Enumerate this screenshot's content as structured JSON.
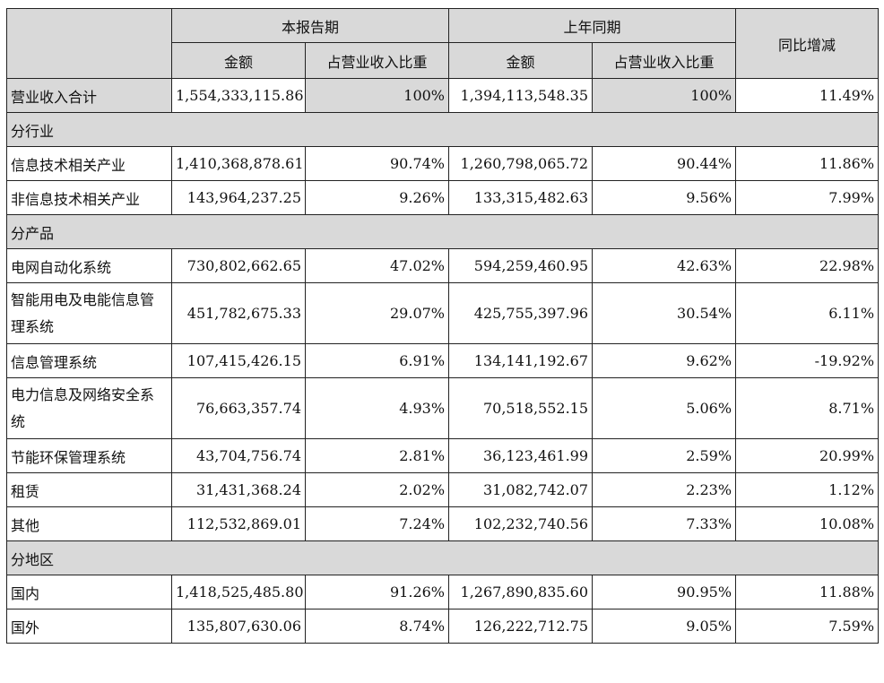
{
  "header": {
    "current_period": "本报告期",
    "prior_period": "上年同期",
    "yoy_change": "同比增减",
    "amount": "金额",
    "share_of_revenue": "占营业收入比重"
  },
  "total": {
    "label": "营业收入合计",
    "cur_amount": "1,554,333,115.86",
    "cur_pct": "100%",
    "prev_amount": "1,394,113,548.35",
    "prev_pct": "100%",
    "yoy": "11.49%"
  },
  "sections": [
    {
      "title": "分行业",
      "rows": [
        {
          "label": "信息技术相关产业",
          "cur_amount": "1,410,368,878.61",
          "cur_pct": "90.74%",
          "prev_amount": "1,260,798,065.72",
          "prev_pct": "90.44%",
          "yoy": "11.86%"
        },
        {
          "label": "非信息技术相关产业",
          "cur_amount": "143,964,237.25",
          "cur_pct": "9.26%",
          "prev_amount": "133,315,482.63",
          "prev_pct": "9.56%",
          "yoy": "7.99%"
        }
      ]
    },
    {
      "title": "分产品",
      "rows": [
        {
          "label": "电网自动化系统",
          "cur_amount": "730,802,662.65",
          "cur_pct": "47.02%",
          "prev_amount": "594,259,460.95",
          "prev_pct": "42.63%",
          "yoy": "22.98%"
        },
        {
          "label": "智能用电及电能信息管理系统",
          "cur_amount": "451,782,675.33",
          "cur_pct": "29.07%",
          "prev_amount": "425,755,397.96",
          "prev_pct": "30.54%",
          "yoy": "6.11%"
        },
        {
          "label": "信息管理系统",
          "cur_amount": "107,415,426.15",
          "cur_pct": "6.91%",
          "prev_amount": "134,141,192.67",
          "prev_pct": "9.62%",
          "yoy": "-19.92%"
        },
        {
          "label": "电力信息及网络安全系统",
          "cur_amount": "76,663,357.74",
          "cur_pct": "4.93%",
          "prev_amount": "70,518,552.15",
          "prev_pct": "5.06%",
          "yoy": "8.71%"
        },
        {
          "label": "节能环保管理系统",
          "cur_amount": "43,704,756.74",
          "cur_pct": "2.81%",
          "prev_amount": "36,123,461.99",
          "prev_pct": "2.59%",
          "yoy": "20.99%"
        },
        {
          "label": "租赁",
          "cur_amount": "31,431,368.24",
          "cur_pct": "2.02%",
          "prev_amount": "31,082,742.07",
          "prev_pct": "2.23%",
          "yoy": "1.12%"
        },
        {
          "label": "其他",
          "cur_amount": "112,532,869.01",
          "cur_pct": "7.24%",
          "prev_amount": "102,232,740.56",
          "prev_pct": "7.33%",
          "yoy": "10.08%"
        }
      ]
    },
    {
      "title": "分地区",
      "rows": [
        {
          "label": "国内",
          "cur_amount": "1,418,525,485.80",
          "cur_pct": "91.26%",
          "prev_amount": "1,267,890,835.60",
          "prev_pct": "90.95%",
          "yoy": "11.88%"
        },
        {
          "label": "国外",
          "cur_amount": "135,807,630.06",
          "cur_pct": "8.74%",
          "prev_amount": "126,222,712.75",
          "prev_pct": "9.05%",
          "yoy": "7.59%"
        }
      ]
    }
  ]
}
